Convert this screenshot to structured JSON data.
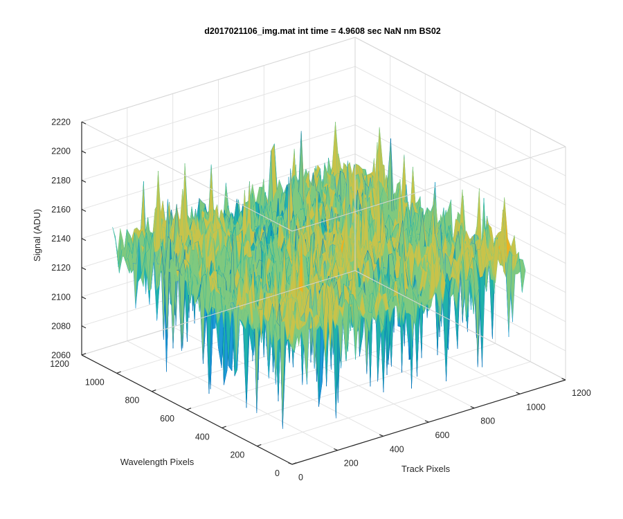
{
  "chart_data": {
    "type": "surface",
    "title": "d2017021106_img.mat int time = 4.9608 sec  NaN nm BS02",
    "xlabel": "Track Pixels",
    "ylabel": "Wavelength Pixels",
    "zlabel": "Signal (ADU)",
    "xlim": [
      0,
      1200
    ],
    "ylim": [
      0,
      1200
    ],
    "zlim": [
      2060,
      2220
    ],
    "xticks": [
      "0",
      "200",
      "400",
      "600",
      "800",
      "1000",
      "1200"
    ],
    "yticks": [
      "0",
      "200",
      "400",
      "600",
      "800",
      "1000",
      "1200"
    ],
    "zticks": [
      "2060",
      "2080",
      "2100",
      "2120",
      "2140",
      "2160",
      "2180",
      "2200",
      "2220"
    ],
    "grid": true,
    "box": "3d",
    "colormap": "parula",
    "surface": {
      "x_extent": [
        0,
        1024
      ],
      "y_extent": [
        0,
        1024
      ],
      "z_mean": 2150,
      "z_typical_range": [
        2110,
        2200
      ],
      "z_min_spikes": 2075,
      "z_max_spikes": 2205,
      "colors": [
        "#0072BD",
        "#1E9BD6",
        "#20B2AA",
        "#7FC97F",
        "#C8C34A",
        "#EDB120",
        "#F2C744"
      ]
    }
  }
}
